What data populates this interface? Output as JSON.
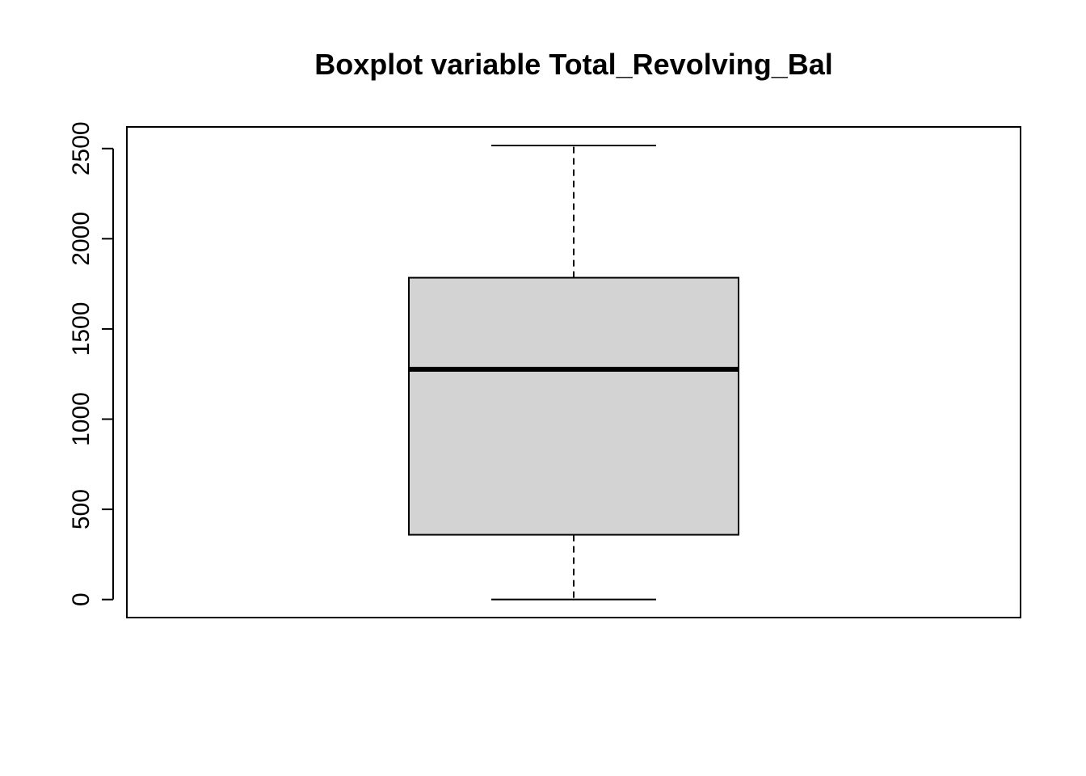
{
  "chart_data": {
    "type": "boxplot",
    "title": "Boxplot variable Total_Revolving_Bal",
    "xlabel": "",
    "ylabel": "",
    "ylim": [
      -100,
      2620
    ],
    "y_ticks": [
      0,
      500,
      1000,
      1500,
      2000,
      2500
    ],
    "y_tick_labels": [
      "0",
      "500",
      "1000",
      "1500",
      "2000",
      "2500"
    ],
    "grid": false,
    "legend": "none",
    "box": {
      "whisker_low": 0,
      "q1": 359,
      "median": 1276,
      "q3": 1784,
      "whisker_high": 2517
    },
    "colors": {
      "box_fill": "#d3d3d3",
      "stroke": "#000000",
      "background": "#ffffff"
    }
  }
}
